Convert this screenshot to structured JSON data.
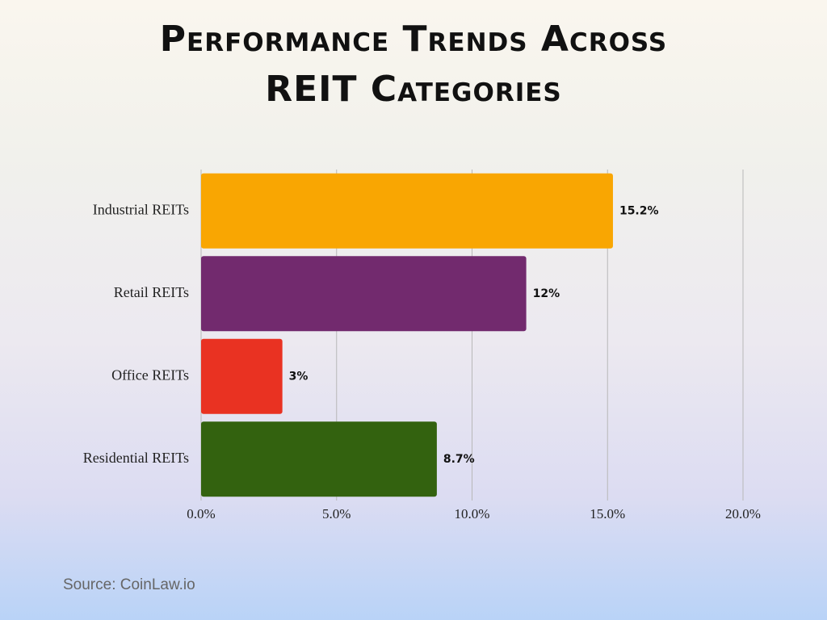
{
  "chart_data": {
    "type": "bar",
    "orientation": "horizontal",
    "title": "Performance Trends Across REIT Categories",
    "categories": [
      "Industrial REITs",
      "Retail REITs",
      "Office REITs",
      "Residential REITs"
    ],
    "values": [
      15.2,
      12,
      3,
      8.7
    ],
    "value_labels": [
      "15.2%",
      "12%",
      "3%",
      "8.7%"
    ],
    "colors": [
      "#f9a602",
      "#722a6e",
      "#e93222",
      "#33620f"
    ],
    "xlim": [
      0,
      20
    ],
    "xticks": [
      {
        "value": 0,
        "label": "0.0%"
      },
      {
        "value": 5,
        "label": "5.0%"
      },
      {
        "value": 10,
        "label": "10.0%"
      },
      {
        "value": 15,
        "label": "15.0%"
      },
      {
        "value": 20,
        "label": "20.0%"
      }
    ],
    "grid": true,
    "source": "Source: CoinLaw.io"
  }
}
